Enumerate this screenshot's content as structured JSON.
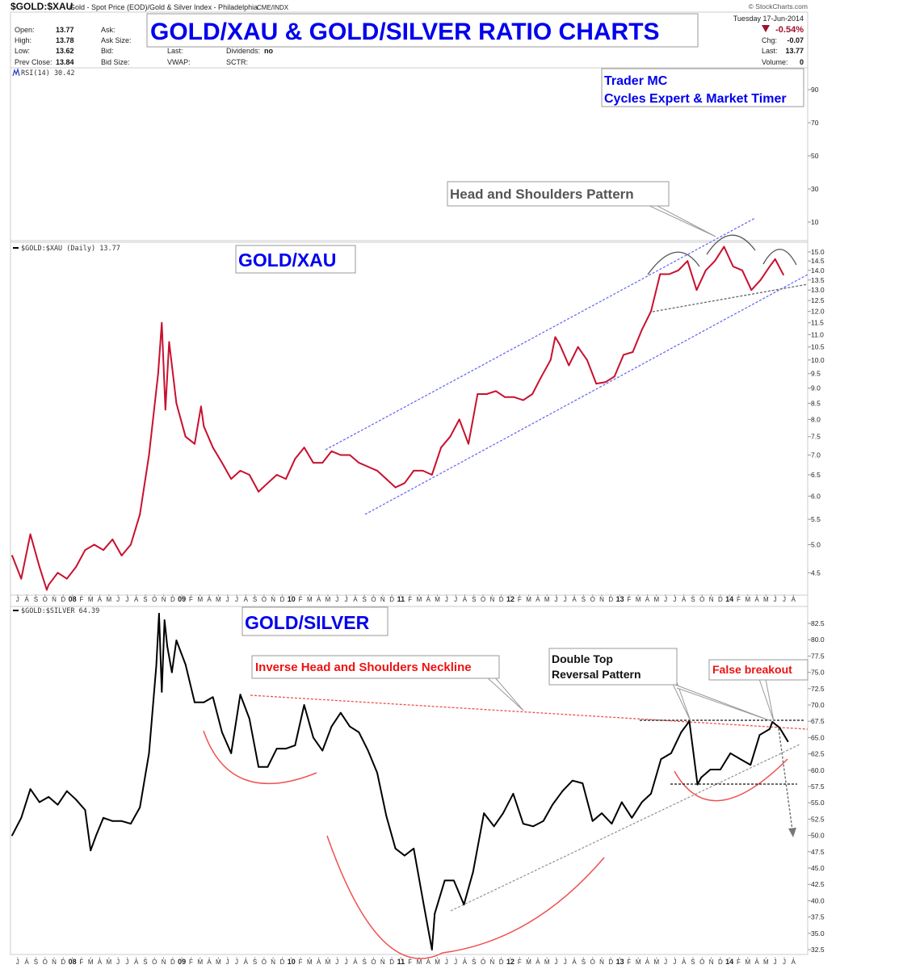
{
  "header": {
    "symbol": "$GOLD:$XAU",
    "description": "Gold - Spot Price (EOD)/Gold & Silver Index - Philadelphia",
    "exchange": "CME/INDX",
    "copyright": "© StockCharts.com",
    "date": "Tuesday  17-Jun-2014",
    "pct_change": "-0.54%",
    "quote": {
      "open_label": "Open:",
      "open": "13.77",
      "high_label": "High:",
      "high": "13.78",
      "low_label": "Low:",
      "low": "13.62",
      "prev_close_label": "Prev Close:",
      "prev_close": "13.84",
      "ask_label": "Ask:",
      "ask_size_label": "Ask Size:",
      "bid_label": "Bid:",
      "bid_size_label": "Bid Size:",
      "last_label": "Last:",
      "vwap_label": "VWAP:",
      "dividends_label": "Dividends:",
      "dividends": "no",
      "sctr_label": "SCTR:",
      "chg_label": "Chg:",
      "chg": "-0.07",
      "last2_label": "Last:",
      "last2": "13.77",
      "volume_label": "Volume:",
      "volume": "0"
    }
  },
  "overlays": {
    "main_title": "GOLD/XAU & GOLD/SILVER RATIO CHARTS",
    "author_line1": "Trader MC",
    "author_line2": "Cycles Expert & Market Timer",
    "hs_pattern": "Head and Shoulders Pattern",
    "panel2_title": "GOLD/XAU",
    "panel3_title": "GOLD/SILVER",
    "inverse_hs": "Inverse Head and Shoulders Neckline",
    "double_top_1": "Double Top",
    "double_top_2": "Reversal Pattern",
    "false_breakout": "False breakout"
  },
  "colors": {
    "xau_line": "#c8102e",
    "gsr_line": "#000000",
    "channel": "#6a6af5",
    "annotation_red": "#f05050",
    "title_blue": "#0000ee"
  },
  "chart_data": [
    {
      "type": "line",
      "title": "RSI(14) 30.42",
      "series": [],
      "yticks": [
        90,
        70,
        50,
        30,
        10
      ],
      "ylim": [
        0,
        100
      ]
    },
    {
      "type": "line",
      "title": "$GOLD:$XAU (Daily) 13.77",
      "yscale": "log",
      "ylim": [
        4.2,
        15.6
      ],
      "yticks": [
        "15.0",
        "14.5",
        "14.0",
        "13.5",
        "13.0",
        "12.5",
        "12.0",
        "11.5",
        "11.0",
        "10.5",
        "10.0",
        "9.5",
        "9.0",
        "8.5",
        "8.0",
        "7.5",
        "7.0",
        "6.5",
        "6.0",
        "5.5",
        "5.0",
        "4.5"
      ],
      "x_unit": "months from Jul 2007",
      "points": [
        [
          0,
          4.8
        ],
        [
          1,
          4.4
        ],
        [
          2,
          5.2
        ],
        [
          3,
          4.6
        ],
        [
          3.8,
          4.22
        ],
        [
          4,
          4.3
        ],
        [
          5,
          4.5
        ],
        [
          6,
          4.4
        ],
        [
          7,
          4.6
        ],
        [
          8,
          4.9
        ],
        [
          9,
          5.0
        ],
        [
          10,
          4.9
        ],
        [
          11,
          5.1
        ],
        [
          12,
          4.8
        ],
        [
          13,
          5.0
        ],
        [
          14,
          5.6
        ],
        [
          15,
          7.0
        ],
        [
          16,
          9.5
        ],
        [
          16.4,
          11.5
        ],
        [
          16.8,
          8.3
        ],
        [
          17.2,
          10.7
        ],
        [
          18,
          8.5
        ],
        [
          19,
          7.5
        ],
        [
          20,
          7.3
        ],
        [
          20.7,
          8.4
        ],
        [
          21,
          7.8
        ],
        [
          22,
          7.2
        ],
        [
          23,
          6.8
        ],
        [
          24,
          6.4
        ],
        [
          25,
          6.6
        ],
        [
          26,
          6.5
        ],
        [
          27,
          6.1
        ],
        [
          28,
          6.3
        ],
        [
          29,
          6.5
        ],
        [
          30,
          6.4
        ],
        [
          31,
          6.9
        ],
        [
          32,
          7.2
        ],
        [
          33,
          6.8
        ],
        [
          34,
          6.8
        ],
        [
          35,
          7.1
        ],
        [
          36,
          7.0
        ],
        [
          37,
          7.0
        ],
        [
          38,
          6.8
        ],
        [
          39,
          6.7
        ],
        [
          40,
          6.6
        ],
        [
          41,
          6.4
        ],
        [
          42,
          6.2
        ],
        [
          43,
          6.3
        ],
        [
          44,
          6.6
        ],
        [
          45,
          6.6
        ],
        [
          46,
          6.5
        ],
        [
          47,
          7.2
        ],
        [
          48,
          7.5
        ],
        [
          49,
          8.0
        ],
        [
          50,
          7.3
        ],
        [
          51,
          8.8
        ],
        [
          52,
          8.8
        ],
        [
          53,
          8.9
        ],
        [
          54,
          8.7
        ],
        [
          55,
          8.7
        ],
        [
          56,
          8.6
        ],
        [
          57,
          8.8
        ],
        [
          58,
          9.4
        ],
        [
          59,
          10.0
        ],
        [
          59.5,
          10.9
        ],
        [
          60,
          10.6
        ],
        [
          61,
          9.8
        ],
        [
          62,
          10.5
        ],
        [
          63,
          10.0
        ],
        [
          64,
          9.15
        ],
        [
          65,
          9.2
        ],
        [
          66,
          9.4
        ],
        [
          67,
          10.2
        ],
        [
          68,
          10.3
        ],
        [
          69,
          11.2
        ],
        [
          70,
          12.0
        ],
        [
          71,
          13.8
        ],
        [
          72,
          13.8
        ],
        [
          73,
          14.0
        ],
        [
          74,
          14.5
        ],
        [
          75,
          13.0
        ],
        [
          76,
          14.0
        ],
        [
          77,
          14.5
        ],
        [
          78,
          15.3
        ],
        [
          79,
          14.2
        ],
        [
          80,
          14.0
        ],
        [
          81,
          13.0
        ],
        [
          82,
          13.5
        ],
        [
          83,
          14.2
        ],
        [
          83.6,
          14.6
        ],
        [
          84.5,
          13.77
        ]
      ]
    },
    {
      "type": "line",
      "title": "$GOLD:$SILVER 64.39",
      "ylim": [
        31,
        84.5
      ],
      "yticks": [
        "82.5",
        "80.0",
        "77.5",
        "75.0",
        "72.5",
        "70.0",
        "67.5",
        "65.0",
        "62.5",
        "60.0",
        "57.5",
        "55.0",
        "52.5",
        "50.0",
        "47.5",
        "45.0",
        "42.5",
        "40.0",
        "37.5",
        "35.0",
        "32.5"
      ],
      "x_unit": "months from Jul 2007",
      "points": [
        [
          0,
          50
        ],
        [
          1,
          52.7
        ],
        [
          2,
          57.1
        ],
        [
          3,
          55.1
        ],
        [
          4,
          55.9
        ],
        [
          5,
          54.7
        ],
        [
          6,
          56.8
        ],
        [
          7,
          55.5
        ],
        [
          8,
          53.9
        ],
        [
          8.6,
          47.7
        ],
        [
          9.2,
          50
        ],
        [
          10,
          52.7
        ],
        [
          11,
          52.2
        ],
        [
          12,
          52.2
        ],
        [
          13,
          51.8
        ],
        [
          14,
          54.3
        ],
        [
          15,
          62.6
        ],
        [
          15.8,
          76
        ],
        [
          16.1,
          84
        ],
        [
          16.4,
          72
        ],
        [
          16.7,
          83
        ],
        [
          17,
          79
        ],
        [
          17.5,
          75
        ],
        [
          18,
          79.9
        ],
        [
          19,
          76.2
        ],
        [
          20,
          70.4
        ],
        [
          21,
          70.4
        ],
        [
          22,
          71.2
        ],
        [
          23,
          65.8
        ],
        [
          24,
          62.6
        ],
        [
          25,
          71.6
        ],
        [
          26,
          67.9
        ],
        [
          27,
          60.5
        ],
        [
          28,
          60.5
        ],
        [
          29,
          63.3
        ],
        [
          30,
          63.3
        ],
        [
          31,
          63.8
        ],
        [
          32,
          70
        ],
        [
          33,
          65
        ],
        [
          34,
          63
        ],
        [
          35,
          66.7
        ],
        [
          36,
          68.8
        ],
        [
          37,
          66.7
        ],
        [
          38,
          65.8
        ],
        [
          39,
          63
        ],
        [
          40,
          59.6
        ],
        [
          41,
          53
        ],
        [
          42,
          48
        ],
        [
          43,
          46.9
        ],
        [
          44,
          48
        ],
        [
          45.1,
          39.4
        ],
        [
          46.0,
          32.5
        ],
        [
          46.3,
          38
        ],
        [
          47.4,
          43.1
        ],
        [
          48.4,
          43.1
        ],
        [
          49.5,
          39.4
        ],
        [
          50.5,
          44.4
        ],
        [
          51.7,
          53.4
        ],
        [
          52.8,
          51.4
        ],
        [
          53.8,
          53.4
        ],
        [
          54.9,
          56.4
        ],
        [
          56.0,
          51.8
        ],
        [
          57.1,
          51.4
        ],
        [
          58.2,
          52.2
        ],
        [
          59.2,
          54.7
        ],
        [
          60.3,
          56.8
        ],
        [
          61.4,
          58.4
        ],
        [
          62.5,
          58
        ],
        [
          63.6,
          52.2
        ],
        [
          64.6,
          53.4
        ],
        [
          65.7,
          51.8
        ],
        [
          66.8,
          55.1
        ],
        [
          67.9,
          52.7
        ],
        [
          69.0,
          55.1
        ],
        [
          70.0,
          56.4
        ],
        [
          71.1,
          61.7
        ],
        [
          72.2,
          62.6
        ],
        [
          73.3,
          65.8
        ],
        [
          74.2,
          67.5
        ],
        [
          75.1,
          57.8
        ],
        [
          75.5,
          58.9
        ],
        [
          76.5,
          60.1
        ],
        [
          77.6,
          60.1
        ],
        [
          78.7,
          62.6
        ],
        [
          79.8,
          61.7
        ],
        [
          80.9,
          60.8
        ],
        [
          81.9,
          65.4
        ],
        [
          83.0,
          66.3
        ],
        [
          83.3,
          67.4
        ],
        [
          84.1,
          66.5
        ],
        [
          85.0,
          64.4
        ]
      ]
    }
  ],
  "x_axis": {
    "labels": [
      "J",
      "A",
      "S",
      "O",
      "N",
      "D",
      "08",
      "F",
      "M",
      "A",
      "M",
      "J",
      "J",
      "A",
      "S",
      "O",
      "N",
      "D",
      "09",
      "F",
      "M",
      "A",
      "M",
      "J",
      "J",
      "A",
      "S",
      "O",
      "N",
      "D",
      "10",
      "F",
      "M",
      "A",
      "M",
      "J",
      "J",
      "A",
      "S",
      "O",
      "N",
      "D",
      "11",
      "F",
      "M",
      "A",
      "M",
      "J",
      "J",
      "A",
      "S",
      "O",
      "N",
      "D",
      "12",
      "F",
      "M",
      "A",
      "M",
      "J",
      "J",
      "A",
      "S",
      "O",
      "N",
      "D",
      "13",
      "F",
      "M",
      "A",
      "M",
      "J",
      "J",
      "A",
      "S",
      "O",
      "N",
      "D",
      "14",
      "F",
      "M",
      "A",
      "M",
      "J",
      "J",
      "A"
    ]
  }
}
